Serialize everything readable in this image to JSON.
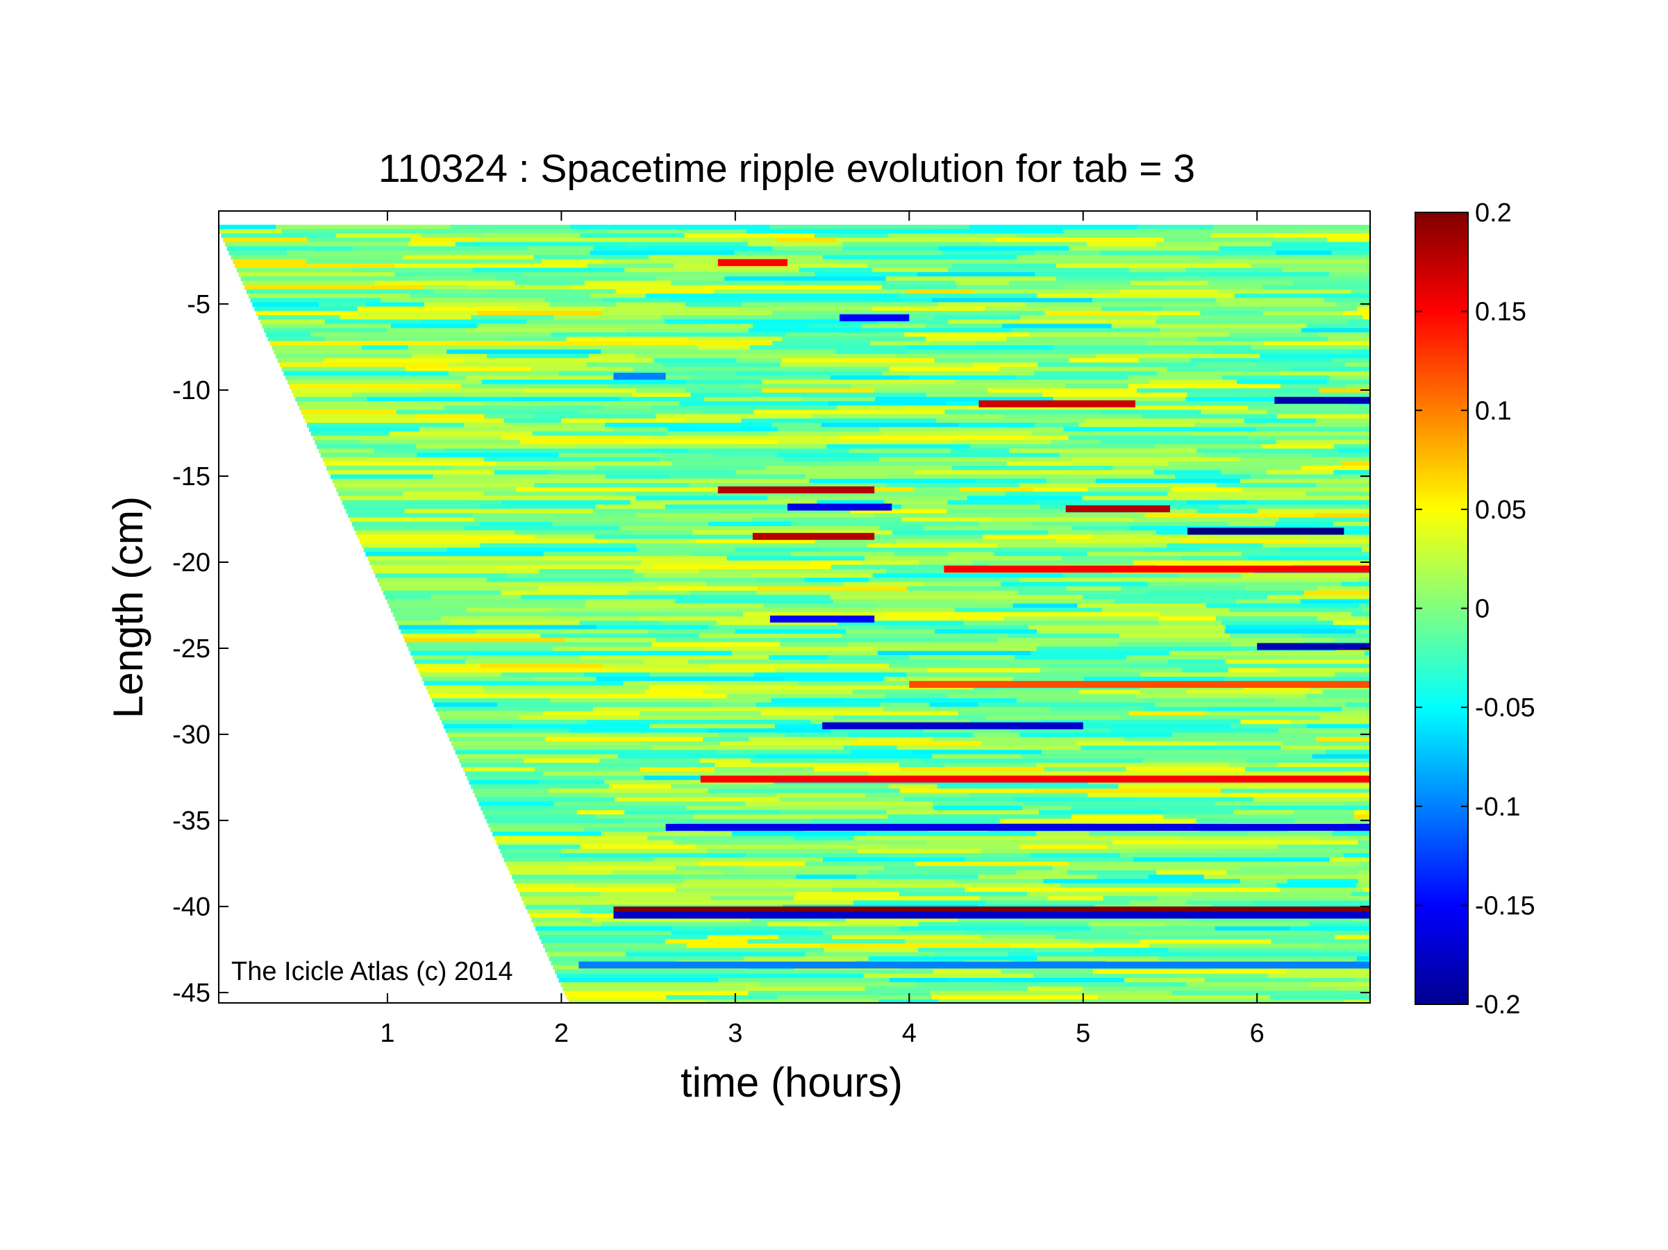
{
  "chart_data": {
    "type": "heatmap",
    "title": "110324 : Spacetime ripple evolution for tab = 3",
    "xlabel": "time (hours)",
    "ylabel": "Length (cm)",
    "xlim": [
      0.03,
      6.65
    ],
    "ylim": [
      -45.6,
      0.4
    ],
    "xticks": [
      1,
      2,
      3,
      4,
      5,
      6
    ],
    "xtick_labels": [
      "1",
      "2",
      "3",
      "4",
      "5",
      "6"
    ],
    "yticks": [
      -5,
      -10,
      -15,
      -20,
      -25,
      -30,
      -35,
      -40,
      -45
    ],
    "ytick_labels": [
      "-5",
      "-10",
      "-15",
      "-20",
      "-25",
      "-30",
      "-35",
      "-40",
      "-45"
    ],
    "colormap": "jet",
    "clim": [
      -0.2,
      0.2
    ],
    "colorbar_ticks": [
      0.2,
      0.15,
      0.1,
      0.05,
      0,
      -0.05,
      -0.1,
      -0.15,
      -0.2
    ],
    "colorbar_tick_labels": [
      "0.2",
      "0.15",
      "0.1",
      "0.05",
      "0",
      "-0.05",
      "-0.1",
      "-0.15",
      "-0.2"
    ],
    "grid": false,
    "growth_front": {
      "description_points_time_hours": [
        0.03,
        2.05
      ],
      "description_points_length_cm": [
        -0.6,
        -45.6
      ]
    },
    "annotation": "The Icicle Atlas (c) 2014",
    "strong_features": [
      {
        "length_cm": -2.6,
        "t_start": 2.9,
        "t_end": 3.3,
        "value": 0.15
      },
      {
        "length_cm": -5.8,
        "t_start": 3.6,
        "t_end": 4.0,
        "value": -0.15
      },
      {
        "length_cm": -9.2,
        "t_start": 2.3,
        "t_end": 2.6,
        "value": -0.1
      },
      {
        "length_cm": -10.8,
        "t_start": 4.4,
        "t_end": 5.3,
        "value": 0.17
      },
      {
        "length_cm": -10.6,
        "t_start": 6.1,
        "t_end": 6.65,
        "value": -0.18
      },
      {
        "length_cm": -15.8,
        "t_start": 2.9,
        "t_end": 3.8,
        "value": 0.18
      },
      {
        "length_cm": -16.8,
        "t_start": 3.3,
        "t_end": 3.9,
        "value": -0.16
      },
      {
        "length_cm": -16.9,
        "t_start": 4.9,
        "t_end": 5.5,
        "value": 0.18
      },
      {
        "length_cm": -18.2,
        "t_start": 5.6,
        "t_end": 6.5,
        "value": -0.2
      },
      {
        "length_cm": -18.5,
        "t_start": 3.1,
        "t_end": 3.8,
        "value": 0.18
      },
      {
        "length_cm": -20.4,
        "t_start": 4.2,
        "t_end": 6.65,
        "value": 0.15
      },
      {
        "length_cm": -23.3,
        "t_start": 3.2,
        "t_end": 3.8,
        "value": -0.15
      },
      {
        "length_cm": -24.9,
        "t_start": 6.0,
        "t_end": 6.65,
        "value": -0.18
      },
      {
        "length_cm": -27.1,
        "t_start": 4.0,
        "t_end": 6.65,
        "value": 0.12
      },
      {
        "length_cm": -29.5,
        "t_start": 3.5,
        "t_end": 5.0,
        "value": -0.17
      },
      {
        "length_cm": -32.6,
        "t_start": 2.8,
        "t_end": 6.65,
        "value": 0.15
      },
      {
        "length_cm": -35.4,
        "t_start": 2.6,
        "t_end": 6.65,
        "value": -0.16
      },
      {
        "length_cm": -40.2,
        "t_start": 2.3,
        "t_end": 6.65,
        "value": 0.2
      },
      {
        "length_cm": -40.5,
        "t_start": 2.3,
        "t_end": 6.65,
        "value": -0.17
      },
      {
        "length_cm": -43.4,
        "t_start": 2.1,
        "t_end": 6.65,
        "value": -0.1
      }
    ]
  }
}
